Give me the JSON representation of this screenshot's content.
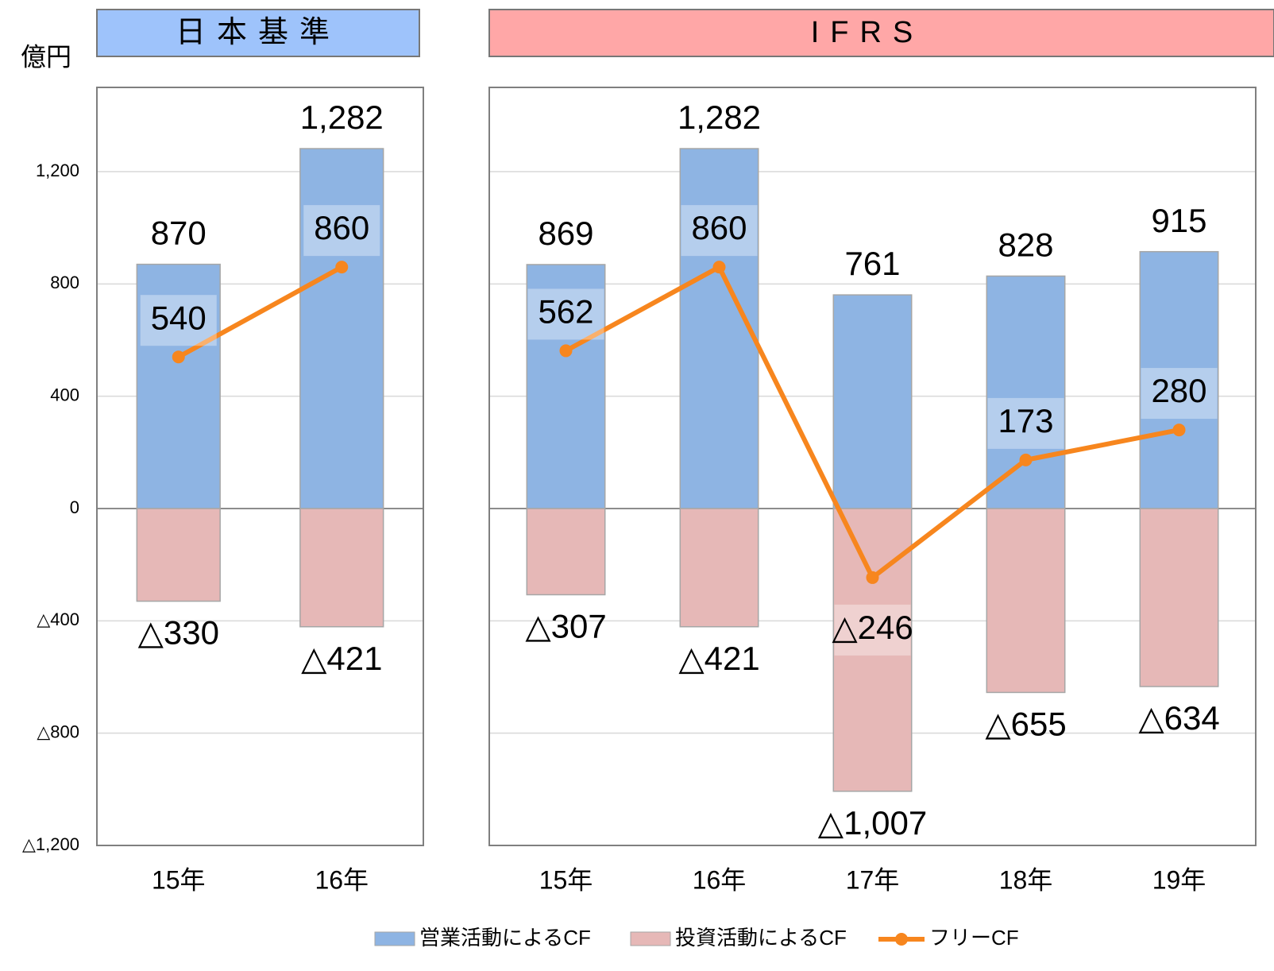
{
  "chart_data": [
    {
      "type": "bar_line",
      "title": "日本基準",
      "y_label": "億円",
      "header_color": "#9ec3fb",
      "categories": [
        "15年",
        "16年"
      ],
      "ylim": [
        -1200,
        1500
      ],
      "yticks": [
        {
          "value": 1200,
          "label": "1,200"
        },
        800,
        400,
        0,
        {
          "value": -400,
          "label": "△400"
        },
        {
          "value": -800,
          "label": "△800"
        },
        {
          "value": -1200,
          "label": "△1,200"
        }
      ],
      "grid": true,
      "series": [
        {
          "name": "営業活動によるCF",
          "kind": "bar",
          "color": "#8eb4e3",
          "values": [
            870,
            1282
          ],
          "value_labels": [
            "870",
            "1,282"
          ]
        },
        {
          "name": "投資活動によるCF",
          "kind": "bar",
          "color": "#e6b8b7",
          "values": [
            -330,
            -421
          ],
          "value_labels": [
            "△330",
            "△421"
          ]
        },
        {
          "name": "フリーCF",
          "kind": "line",
          "color": "#f7861e",
          "values": [
            540,
            860
          ]
        }
      ]
    },
    {
      "type": "bar_line",
      "title": "IFRS",
      "header_color": "#ffa7a7",
      "categories": [
        "15年",
        "16年",
        "17年",
        "18年",
        "19年"
      ],
      "ylim": [
        -1200,
        1500
      ],
      "yticks": [
        1200,
        800,
        400,
        0,
        -400,
        -800,
        -1200
      ],
      "grid": true,
      "series": [
        {
          "kind": "bar",
          "color": "#8eb4e3",
          "values": [
            869,
            1282,
            761,
            828,
            915
          ],
          "value_labels": [
            "869",
            "1,282",
            "761",
            "828",
            "915"
          ]
        },
        {
          "kind": "bar",
          "color": "#e6b8b7",
          "values": [
            -307,
            -421,
            -1007,
            -655,
            -634
          ],
          "value_labels": [
            "△307",
            "△421",
            "△1,007",
            "△655",
            "△634"
          ]
        },
        {
          "kind": "line",
          "color": "#f7861e",
          "values": [
            562,
            860,
            -246,
            173,
            280
          ],
          "value_labels": [
            "562",
            "860",
            "△246",
            "173",
            "280"
          ]
        }
      ]
    }
  ]
}
